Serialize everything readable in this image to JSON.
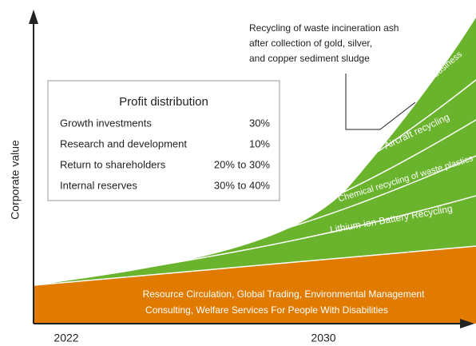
{
  "axis": {
    "y_label": "Corporate value",
    "x_start": "2022",
    "x_end": "2030"
  },
  "base_layer": {
    "lines": [
      "Resource Circulation, Global Trading, Environmental Management",
      "Consulting, Welfare Services For People With Disabilities"
    ]
  },
  "growth_layers": [
    "Lithium-ion Battery Recycling",
    "Chemical recycling of waste plastics",
    "Aircraft recycling",
    "Other new business"
  ],
  "annotation": {
    "lines": [
      "Recycling of waste incineration ash",
      "after collection of gold, silver,",
      "and copper sediment sludge"
    ]
  },
  "table": {
    "title": "Profit distribution",
    "rows": [
      [
        "Growth investments",
        "30%"
      ],
      [
        "Research and development",
        "10%"
      ],
      [
        "Return to shareholders",
        "20% to 30%"
      ],
      [
        "Internal reserves",
        "30% to 40%"
      ]
    ]
  }
}
